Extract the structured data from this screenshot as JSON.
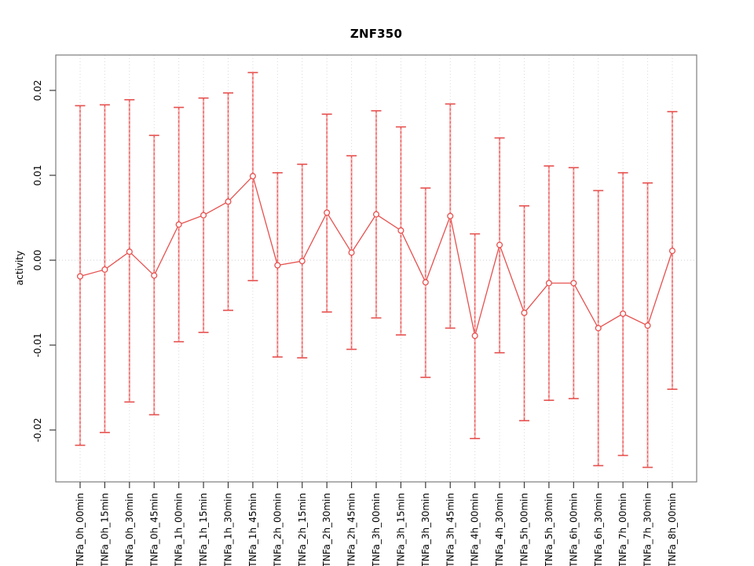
{
  "chart_data": {
    "type": "line",
    "subtype": "points-with-error-bars",
    "title": "ZNF350",
    "xlabel": "",
    "ylabel": "activity",
    "ylim": [
      -0.026,
      0.024
    ],
    "yticks": [
      0.02,
      0.01,
      0.0,
      -0.01,
      -0.02
    ],
    "ytick_labels": [
      "0.02",
      "0.01",
      "0.00",
      "-0.01",
      "-0.02"
    ],
    "grid": "light dotted vertical line at every category; dotted horizontal line at y=0; legend none",
    "categories": [
      "TNFa_0h_00min",
      "TNFa_0h_15min",
      "TNFa_0h_30min",
      "TNFa_0h_45min",
      "TNFa_1h_00min",
      "TNFa_1h_15min",
      "TNFa_1h_30min",
      "TNFa_1h_45min",
      "TNFa_2h_00min",
      "TNFa_2h_15min",
      "TNFa_2h_30min",
      "TNFa_2h_45min",
      "TNFa_3h_00min",
      "TNFa_3h_15min",
      "TNFa_3h_30min",
      "TNFa_3h_45min",
      "TNFa_4h_00min",
      "TNFa_4h_30min",
      "TNFa_5h_00min",
      "TNFa_5h_30min",
      "TNFa_6h_00min",
      "TNFa_6h_30min",
      "TNFa_7h_00min",
      "TNFa_7h_30min",
      "TNFa_8h_00min"
    ],
    "series": [
      {
        "name": "activity",
        "values": [
          -0.0019,
          -0.0011,
          0.001,
          -0.0018,
          0.0042,
          0.0053,
          0.0069,
          0.0099,
          -0.0006,
          -0.0001,
          0.0056,
          0.0009,
          0.0054,
          0.0035,
          -0.0026,
          0.0052,
          -0.0089,
          0.0018,
          -0.0062,
          -0.0027,
          -0.0027,
          -0.008,
          -0.0063,
          -0.0077,
          0.0011
        ],
        "upper": [
          0.0182,
          0.0183,
          0.0189,
          0.0147,
          0.018,
          0.0191,
          0.0197,
          0.0221,
          0.0103,
          0.0113,
          0.0172,
          0.0123,
          0.0176,
          0.0157,
          0.0085,
          0.0184,
          0.0031,
          0.0144,
          0.0064,
          0.0111,
          0.0109,
          0.0082,
          0.0103,
          0.0091,
          0.0175
        ],
        "lower": [
          -0.0218,
          -0.0203,
          -0.0167,
          -0.0182,
          -0.0096,
          -0.0085,
          -0.0059,
          -0.0024,
          -0.0114,
          -0.0115,
          -0.0061,
          -0.0105,
          -0.0068,
          -0.0088,
          -0.0138,
          -0.008,
          -0.021,
          -0.0109,
          -0.0189,
          -0.0165,
          -0.0163,
          -0.0242,
          -0.023,
          -0.0244,
          -0.0152
        ]
      }
    ],
    "colors": {
      "series": "#e6514f",
      "series_light": "#f7b1b1",
      "marker_fill": "#ffffff",
      "grid": "#d9d9d9",
      "zero_grid": "#cccccc",
      "frame": "#7d7d7d",
      "tick": "#3a3a3a",
      "text": "#000000"
    }
  }
}
